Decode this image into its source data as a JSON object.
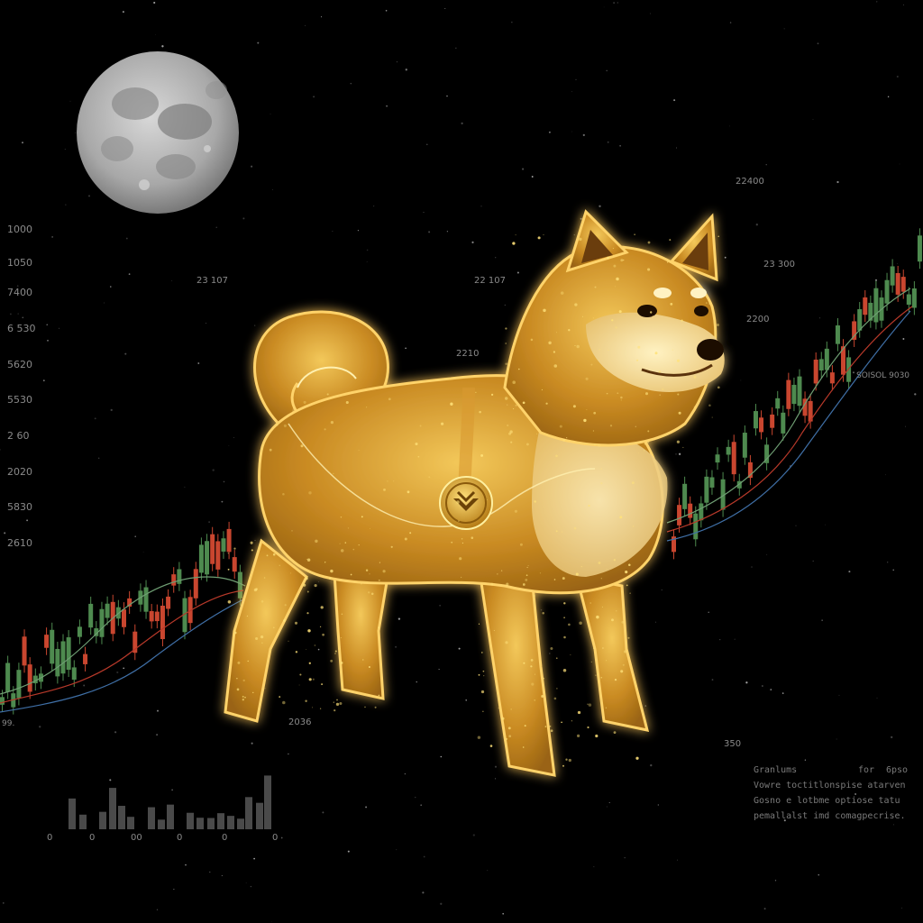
{
  "colors": {
    "background": "#000000",
    "candle_up": "#4e8a4f",
    "candle_down": "#c9462f",
    "ma_red": "#b8392a",
    "ma_blue": "#3f6fa6",
    "ma_green": "#6f9e73",
    "gold": "#e0a52c",
    "gold_light": "#ffe27a",
    "moon": "#b9b9b9"
  },
  "left_axis_labels": [
    "1000",
    "1050",
    "7400",
    "6 530",
    "5620",
    "5530",
    "2 60",
    "2020",
    "5830",
    "2610"
  ],
  "floating_labels": {
    "l1": "23 107",
    "l2": "22 107",
    "l3": "2210",
    "l4": "22400",
    "l5": "23 300",
    "l6": "2200",
    "l7": "SOISOL 9030",
    "l8": "2036",
    "l9": "350",
    "l10": "99."
  },
  "volume_axis_labels": [
    "0",
    "0",
    "00",
    "0",
    "0",
    "0"
  ],
  "notes": {
    "line1_a": "Granlums",
    "line1_b": "for",
    "line1_c": "6pso",
    "line2": "Vowre  toctitlonspise  atarven",
    "line3": "Gosno  e  lotbme  optiose  tatu",
    "line4": "pemallalst  imd  comagpecrise."
  },
  "icons": {
    "moon": "full-moon",
    "dog": "glowing-shiba-inu",
    "medallion": "gold-coin-with-arrow-emblem"
  }
}
